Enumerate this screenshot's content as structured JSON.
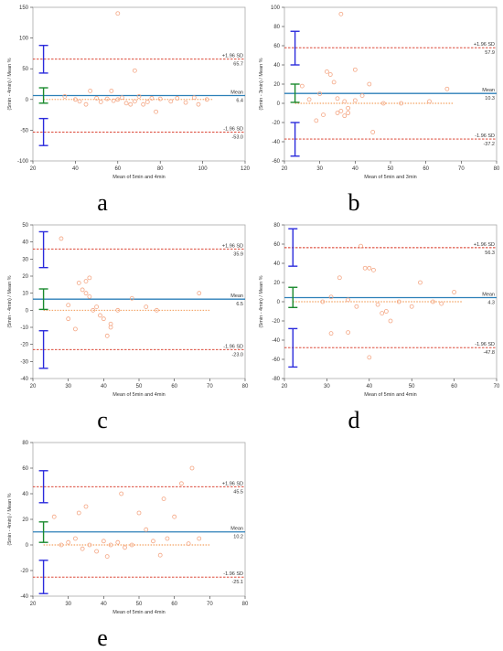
{
  "colors": {
    "points": "#f4a582",
    "mean_line": "#2c7fb8",
    "sd_line": "#d7301f",
    "zero_line": "#f08c3c",
    "mean_ci": "#1a8a2e",
    "loa_ci": "#2b2bdc",
    "axis": "#333333",
    "frame": "#aaaaaa"
  },
  "chart_data": [
    {
      "panel": "a",
      "type": "scatter",
      "xlabel": "Mean of 5min and 4min",
      "ylabel": "(5min - 4min) / Mean %",
      "xlim": [
        20,
        120
      ],
      "ylim": [
        -100,
        150
      ],
      "xticks": [
        20,
        40,
        60,
        80,
        100,
        120
      ],
      "yticks": [
        -100,
        -50,
        0,
        50,
        100,
        150
      ],
      "mean": 6.4,
      "upper_loa": 65.7,
      "lower_loa": -53.0,
      "upper_label": "+1.96 SD",
      "mean_label": "Mean",
      "lower_label": "-1.96 SD",
      "upper_value": "65.7",
      "mean_value": "6.4",
      "lower_value": "-53.0",
      "ci_x": 25,
      "mean_ci": [
        -6,
        19
      ],
      "upper_ci": [
        43,
        88
      ],
      "lower_ci": [
        -75,
        -31
      ],
      "zero_xrange": [
        25,
        105
      ],
      "points": [
        [
          60,
          140
        ],
        [
          68,
          47
        ],
        [
          35,
          5
        ],
        [
          40,
          0
        ],
        [
          42,
          -3
        ],
        [
          45,
          -8
        ],
        [
          47,
          14
        ],
        [
          50,
          2
        ],
        [
          52,
          -4
        ],
        [
          55,
          1
        ],
        [
          57,
          14
        ],
        [
          58,
          -2
        ],
        [
          60,
          0
        ],
        [
          62,
          3
        ],
        [
          64,
          -6
        ],
        [
          66,
          -8
        ],
        [
          68,
          -3
        ],
        [
          70,
          5
        ],
        [
          72,
          -8
        ],
        [
          74,
          -4
        ],
        [
          76,
          2
        ],
        [
          78,
          -20
        ],
        [
          80,
          1
        ],
        [
          85,
          -3
        ],
        [
          88,
          2
        ],
        [
          92,
          -5
        ],
        [
          96,
          3
        ],
        [
          98,
          -8
        ],
        [
          102,
          0
        ]
      ]
    },
    {
      "panel": "b",
      "type": "scatter",
      "xlabel": "Mean of 5min and 3min",
      "ylabel": "(5min - 3min) / Mean %",
      "xlim": [
        20,
        80
      ],
      "ylim": [
        -60,
        100
      ],
      "xticks": [
        20,
        30,
        40,
        50,
        60,
        70,
        80
      ],
      "yticks": [
        -60,
        -40,
        -20,
        0,
        20,
        40,
        60,
        80,
        100
      ],
      "mean": 10.3,
      "upper_loa": 57.9,
      "lower_loa": -37.2,
      "upper_label": "+1.96 SD",
      "mean_label": "Mean",
      "lower_label": "-1.96 SD",
      "upper_value": "57.9",
      "mean_value": "10.3",
      "lower_value": "-37.2",
      "ci_x": 23,
      "mean_ci": [
        1,
        20
      ],
      "upper_ci": [
        40,
        75
      ],
      "lower_ci": [
        -55,
        -20
      ],
      "zero_xrange": [
        23,
        68
      ],
      "points": [
        [
          36,
          93
        ],
        [
          40,
          35
        ],
        [
          32,
          33
        ],
        [
          33,
          30
        ],
        [
          34,
          22
        ],
        [
          25,
          18
        ],
        [
          44,
          20
        ],
        [
          30,
          10
        ],
        [
          35,
          5
        ],
        [
          37,
          2
        ],
        [
          38,
          -5
        ],
        [
          36,
          -8
        ],
        [
          38,
          -10
        ],
        [
          40,
          3
        ],
        [
          42,
          8
        ],
        [
          31,
          -12
        ],
        [
          29,
          -18
        ],
        [
          27,
          4
        ],
        [
          45,
          -30
        ],
        [
          48,
          0
        ],
        [
          53,
          0
        ],
        [
          61,
          2
        ],
        [
          66,
          15
        ],
        [
          35,
          -10
        ],
        [
          37,
          -13
        ]
      ]
    },
    {
      "panel": "c",
      "type": "scatter",
      "xlabel": "Mean of 5min and 4min",
      "ylabel": "(5min - 4min) / Mean %",
      "xlim": [
        20,
        80
      ],
      "ylim": [
        -40,
        50
      ],
      "xticks": [
        20,
        30,
        40,
        50,
        60,
        70,
        80
      ],
      "yticks": [
        -40,
        -30,
        -20,
        -10,
        0,
        10,
        20,
        30,
        40,
        50
      ],
      "mean": 6.5,
      "upper_loa": 35.9,
      "lower_loa": -23.0,
      "upper_label": "+1.96 SD",
      "mean_label": "Mean",
      "lower_label": "-1.96 SD",
      "upper_value": "35.9",
      "mean_value": "6.5",
      "lower_value": "-23.0",
      "ci_x": 23,
      "mean_ci": [
        0.5,
        12.5
      ],
      "upper_ci": [
        25,
        46
      ],
      "lower_ci": [
        -34,
        -12
      ],
      "zero_xrange": [
        23,
        70
      ],
      "points": [
        [
          28,
          42
        ],
        [
          36,
          19
        ],
        [
          35,
          17
        ],
        [
          33,
          16
        ],
        [
          34,
          12
        ],
        [
          35,
          10
        ],
        [
          36,
          8
        ],
        [
          30,
          3
        ],
        [
          38,
          2
        ],
        [
          40,
          -5
        ],
        [
          42,
          -8
        ],
        [
          44,
          0
        ],
        [
          37,
          0
        ],
        [
          30,
          -5
        ],
        [
          32,
          -11
        ],
        [
          41,
          -15
        ],
        [
          42,
          -10
        ],
        [
          48,
          7
        ],
        [
          52,
          2
        ],
        [
          55,
          0
        ],
        [
          67,
          10
        ],
        [
          39,
          -3
        ]
      ]
    },
    {
      "panel": "d",
      "type": "scatter",
      "xlabel": "Mean of 5min and 4min",
      "ylabel": "(5min - 4min) / Mean %",
      "xlim": [
        20,
        70
      ],
      "ylim": [
        -80,
        80
      ],
      "xticks": [
        20,
        30,
        40,
        50,
        60,
        70
      ],
      "yticks": [
        -80,
        -60,
        -40,
        -20,
        0,
        20,
        40,
        60,
        80
      ],
      "mean": 4.3,
      "upper_loa": 56.3,
      "lower_loa": -47.8,
      "upper_label": "+1.96 SD",
      "mean_label": "Mean",
      "lower_label": "-1.96 SD",
      "upper_value": "56.3",
      "mean_value": "4.3",
      "lower_value": "-47.8",
      "ci_x": 22,
      "mean_ci": [
        -6,
        15
      ],
      "upper_ci": [
        37,
        76
      ],
      "lower_ci": [
        -68,
        -28
      ],
      "zero_xrange": [
        22,
        62
      ],
      "points": [
        [
          38,
          58
        ],
        [
          39,
          35
        ],
        [
          40,
          35
        ],
        [
          41,
          33
        ],
        [
          33,
          25
        ],
        [
          52,
          20
        ],
        [
          60,
          10
        ],
        [
          29,
          0
        ],
        [
          31,
          5
        ],
        [
          35,
          2
        ],
        [
          37,
          -5
        ],
        [
          42,
          -3
        ],
        [
          44,
          -10
        ],
        [
          47,
          0
        ],
        [
          50,
          -5
        ],
        [
          57,
          -2
        ],
        [
          31,
          -33
        ],
        [
          35,
          -32
        ],
        [
          40,
          -58
        ],
        [
          43,
          -12
        ],
        [
          45,
          -20
        ],
        [
          55,
          0
        ]
      ]
    },
    {
      "panel": "e",
      "type": "scatter",
      "xlabel": "Mean of 5min and 4min",
      "ylabel": "(5min - 4min) / Mean %",
      "xlim": [
        20,
        80
      ],
      "ylim": [
        -40,
        80
      ],
      "xticks": [
        20,
        30,
        40,
        50,
        60,
        70,
        80
      ],
      "yticks": [
        -40,
        -20,
        0,
        20,
        40,
        60,
        80
      ],
      "mean": 10.2,
      "upper_loa": 45.5,
      "lower_loa": -25.1,
      "upper_label": "+1.96 SD",
      "mean_label": "Mean",
      "lower_label": "-1.96 SD",
      "upper_value": "45.5",
      "mean_value": "10.2",
      "lower_value": "-25.1",
      "ci_x": 23,
      "mean_ci": [
        2,
        18
      ],
      "upper_ci": [
        33,
        58
      ],
      "lower_ci": [
        -38,
        -12
      ],
      "zero_xrange": [
        23,
        70
      ],
      "points": [
        [
          65,
          60
        ],
        [
          62,
          48
        ],
        [
          60,
          22
        ],
        [
          57,
          36
        ],
        [
          45,
          40
        ],
        [
          35,
          30
        ],
        [
          33,
          25
        ],
        [
          26,
          22
        ],
        [
          28,
          0
        ],
        [
          30,
          2
        ],
        [
          32,
          5
        ],
        [
          34,
          -3
        ],
        [
          36,
          0
        ],
        [
          38,
          -5
        ],
        [
          40,
          3
        ],
        [
          42,
          0
        ],
        [
          44,
          2
        ],
        [
          46,
          -2
        ],
        [
          48,
          0
        ],
        [
          50,
          25
        ],
        [
          52,
          12
        ],
        [
          54,
          3
        ],
        [
          56,
          -8
        ],
        [
          58,
          5
        ],
        [
          64,
          1
        ],
        [
          67,
          5
        ],
        [
          41,
          -9
        ]
      ]
    }
  ]
}
